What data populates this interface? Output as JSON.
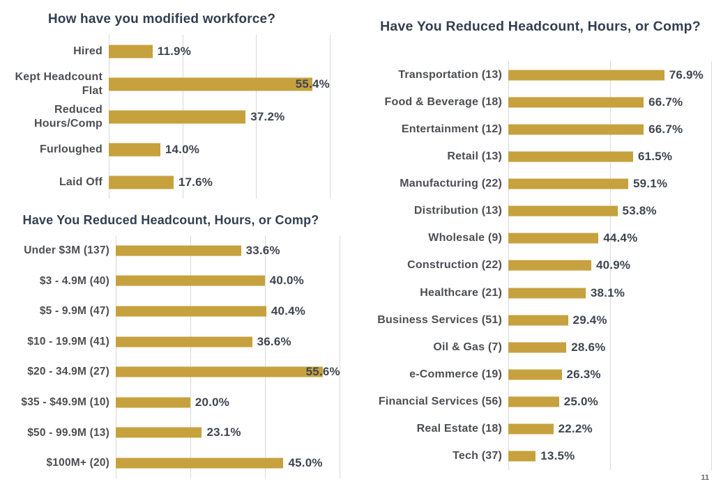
{
  "page": {
    "number": "11"
  },
  "colors": {
    "bar": "#C6A13E",
    "title": "#333F50",
    "category_label": "#4D4E53",
    "value_label": "#3F4550",
    "gridline": "#D9D9D9",
    "page_number": "#5F6B7A",
    "background": "#FFFFFF"
  },
  "chart_data": [
    {
      "id": "workforce-modification",
      "type": "bar",
      "orientation": "horizontal",
      "title": "How have you modified workforce?",
      "categories": [
        "Hired",
        "Kept Headcount Flat",
        "Reduced Hours/Comp",
        "Furloughed",
        "Laid Off"
      ],
      "values": [
        11.9,
        55.4,
        37.2,
        14.0,
        17.6
      ],
      "labels": [
        "11.9%",
        "55.4%",
        "37.2%",
        "14.0%",
        "17.6%"
      ],
      "xlabel": "",
      "ylabel": "",
      "xlim": [
        0,
        63.5
      ],
      "ticks": [
        0,
        20,
        40,
        60
      ],
      "grid": "vertical",
      "legend": "none",
      "data_labels": "outside-end"
    },
    {
      "id": "reduced-headcount-by-revenue",
      "type": "bar",
      "orientation": "horizontal",
      "title": "Have You Reduced Headcount, Hours, or Comp?",
      "categories": [
        "Under $3M (137)",
        "$3 - 4.9M (40)",
        "$5 - 9.9M (47)",
        "$10 - 19.9M (41)",
        "$20 - 34.9M (27)",
        "$35 - $49.9M (10)",
        "$50 - 99.9M (13)",
        "$100M+ (20)"
      ],
      "values": [
        33.6,
        40.0,
        40.4,
        36.6,
        55.6,
        20.0,
        23.1,
        45.0
      ],
      "labels": [
        "33.6%",
        "40.0%",
        "40.4%",
        "36.6%",
        "55.6%",
        "20.0%",
        "23.1%",
        "45.0%"
      ],
      "xlabel": "",
      "ylabel": "",
      "xlim": [
        0,
        61
      ],
      "ticks": [
        0,
        20,
        40,
        60
      ],
      "grid": "vertical",
      "legend": "none",
      "data_labels": "outside-end"
    },
    {
      "id": "reduced-headcount-by-industry",
      "type": "bar",
      "orientation": "horizontal",
      "title": "Have You Reduced Headcount, Hours, or Comp?",
      "categories": [
        "Transportation (13)",
        "Food & Beverage (18)",
        "Entertainment (12)",
        "Retail (13)",
        "Manufacturing (22)",
        "Distribution (13)",
        "Wholesale (9)",
        "Construction (22)",
        "Healthcare (21)",
        "Business Services (51)",
        "Oil & Gas (7)",
        "e-Commerce (19)",
        "Financial Services (56)",
        "Real Estate (18)",
        "Tech (37)"
      ],
      "values": [
        76.9,
        66.7,
        66.7,
        61.5,
        59.1,
        53.8,
        44.4,
        40.9,
        38.1,
        29.4,
        28.6,
        26.3,
        25.0,
        22.2,
        13.5
      ],
      "labels": [
        "76.9%",
        "66.7%",
        "66.7%",
        "61.5%",
        "59.1%",
        "53.8%",
        "44.4%",
        "40.9%",
        "38.1%",
        "29.4%",
        "28.6%",
        "26.3%",
        "25.0%",
        "22.2%",
        "13.5%"
      ],
      "xlabel": "",
      "ylabel": "",
      "xlim": [
        0,
        100
      ],
      "ticks": [
        0,
        50,
        100
      ],
      "grid": "vertical",
      "legend": "none",
      "data_labels": "outside-end"
    }
  ]
}
